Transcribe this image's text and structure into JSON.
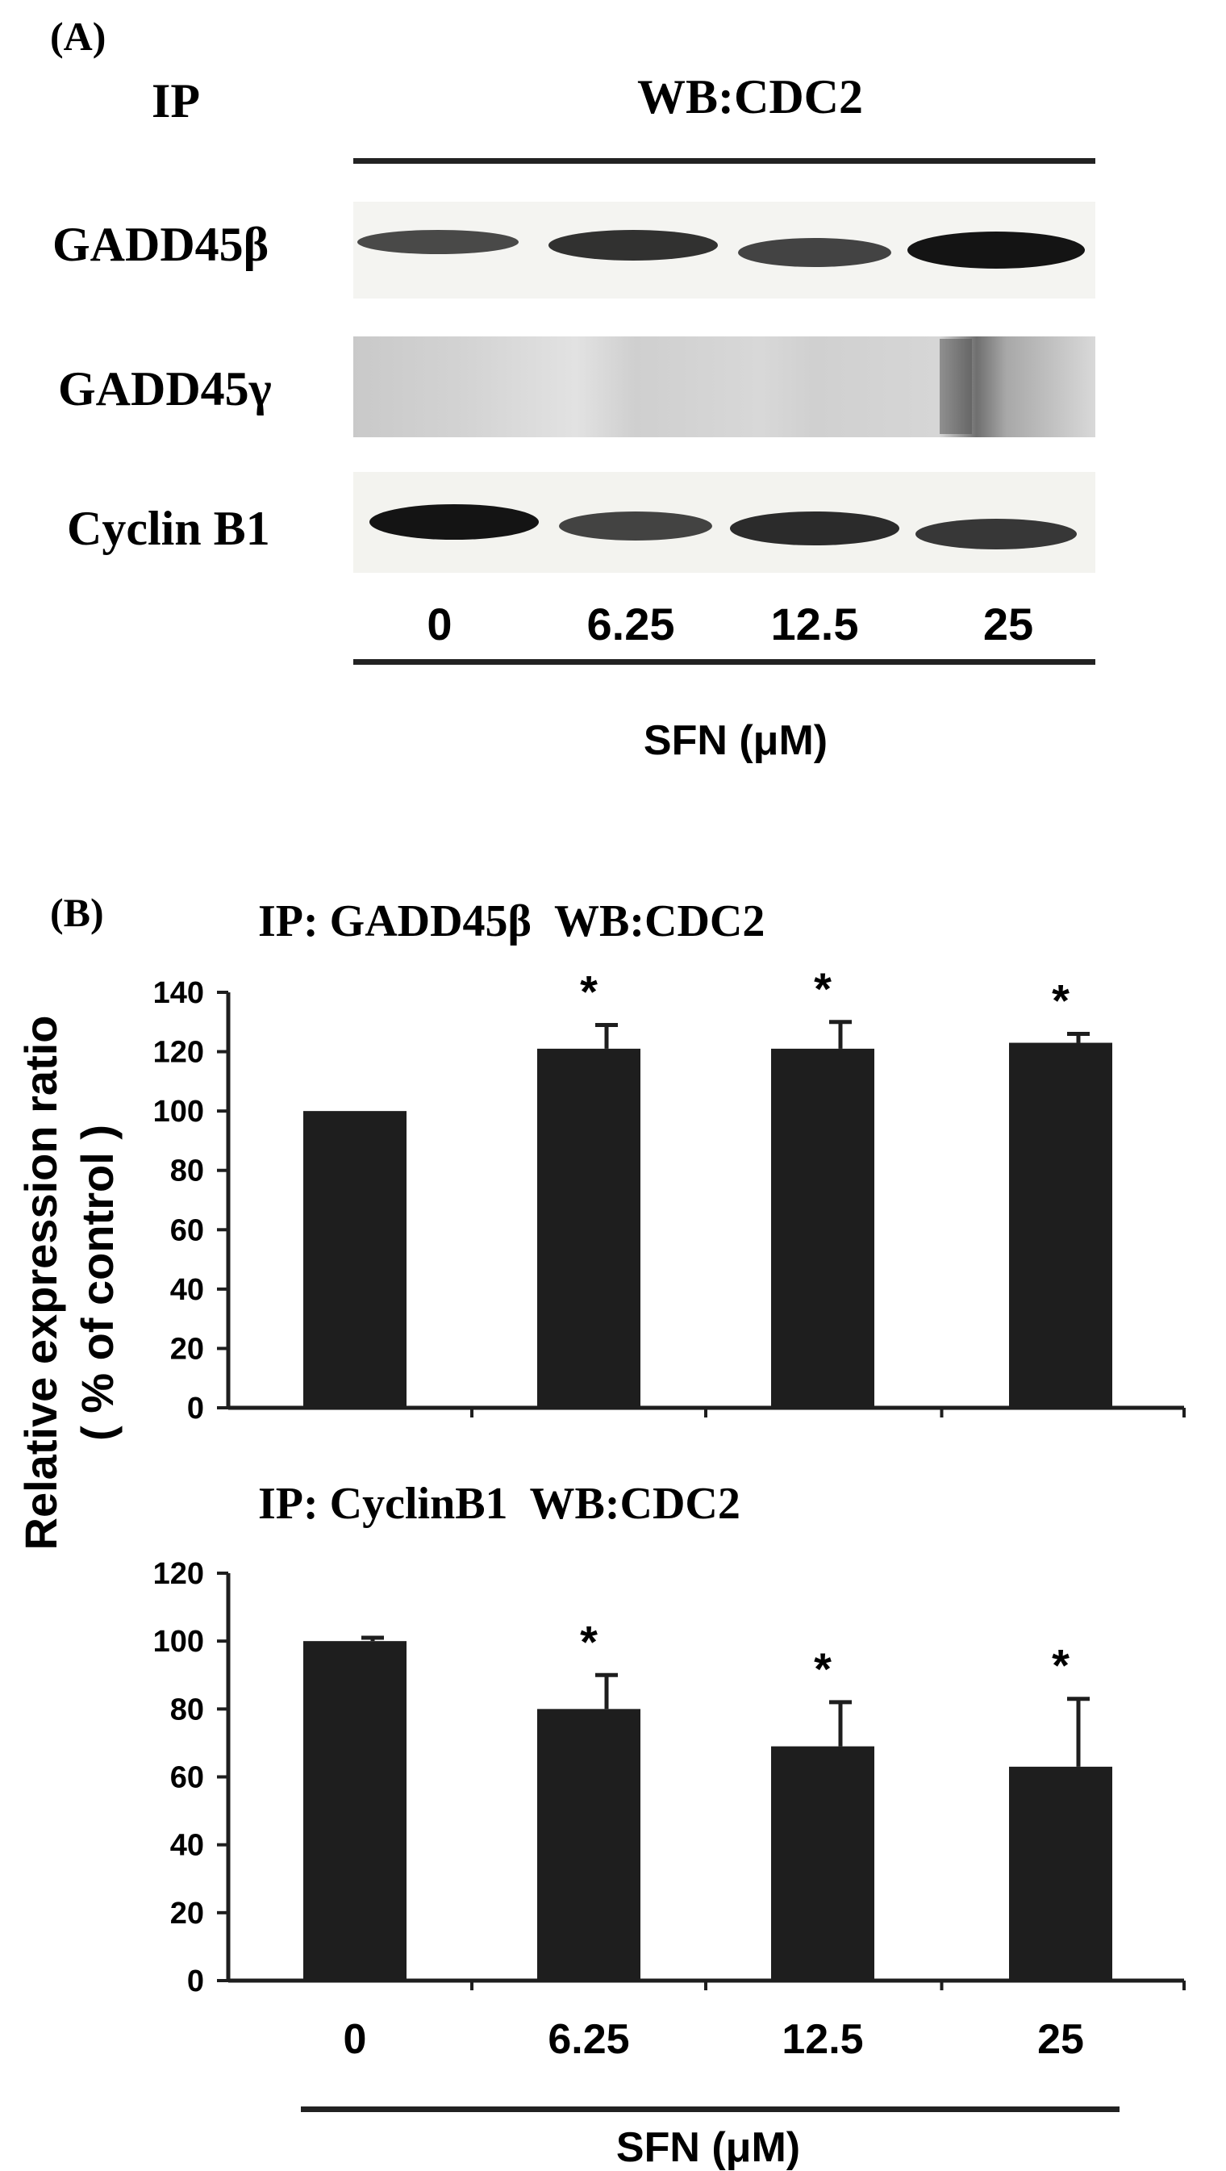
{
  "panel_a": {
    "label": "(A)",
    "ip_header": "IP",
    "wb_header": "WB:CDC2",
    "rows": [
      "GADD45β",
      "GADD45γ",
      "Cyclin B1"
    ],
    "doses": [
      "0",
      "6.25",
      "12.5",
      "25"
    ],
    "xlabel": "SFN (μM)"
  },
  "panel_b": {
    "label": "(B)",
    "ylabel_line1": "Relative expression ratio",
    "ylabel_line2": "( % of control )",
    "xlabel": "SFN (μM)",
    "colors": {
      "bar": "#1e1e1e",
      "axis": "#1e1e1e",
      "background": "#ffffff"
    }
  },
  "chart_data": [
    {
      "type": "bar",
      "title": "IP: GADD45β  WB:CDC2",
      "categories": [
        "0",
        "6.25",
        "12.5",
        "25"
      ],
      "values": [
        100,
        121,
        121,
        123
      ],
      "error": [
        0,
        8,
        9,
        3
      ],
      "significance": [
        "",
        "*",
        "*",
        "*"
      ],
      "ylim": [
        0,
        140
      ],
      "yticks": [
        0,
        20,
        40,
        60,
        80,
        100,
        120,
        140
      ],
      "ylabel": "Relative expression ratio ( % of control )",
      "xlabel": ""
    },
    {
      "type": "bar",
      "title": "IP: CyclinB1  WB:CDC2",
      "categories": [
        "0",
        "6.25",
        "12.5",
        "25"
      ],
      "values": [
        100,
        80,
        69,
        63
      ],
      "error": [
        1,
        10,
        13,
        20
      ],
      "significance": [
        "",
        "*",
        "*",
        "*"
      ],
      "ylim": [
        0,
        120
      ],
      "yticks": [
        0,
        20,
        40,
        60,
        80,
        100,
        120
      ],
      "ylabel": "Relative expression ratio ( % of control )",
      "xlabel": "SFN (μM)"
    }
  ]
}
